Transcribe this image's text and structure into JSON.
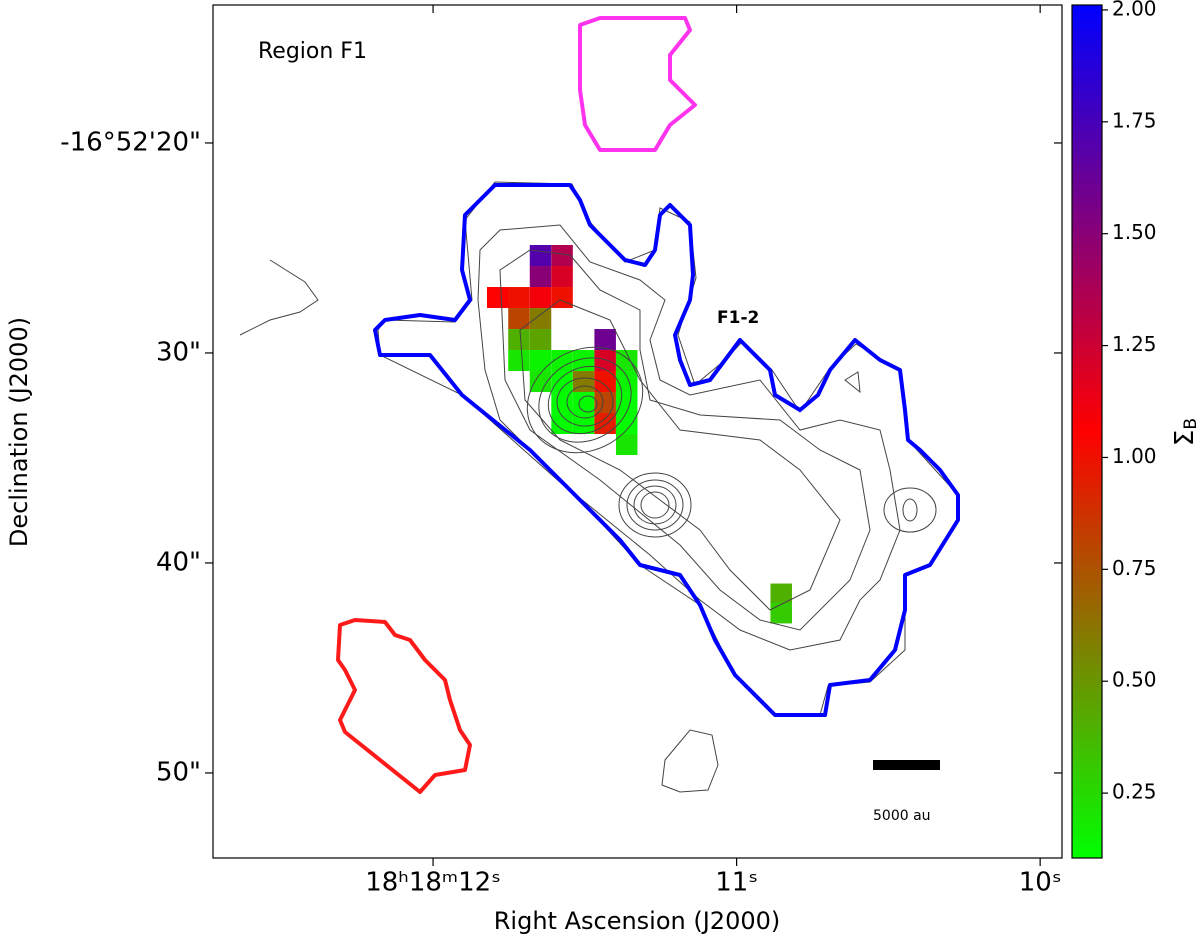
{
  "chart_data": {
    "type": "heatmap",
    "x_label": "Right Ascension (J2000)",
    "y_label": "Declination (J2000)",
    "annotations": {
      "region": "Region F1",
      "source": "F1-2",
      "scale_bar": "5000 au"
    },
    "xlim": [
      12.725,
      9.928
    ],
    "xticks": [
      {
        "value": 12,
        "label": "18ʰ18ᵐ12ˢ"
      },
      {
        "value": 11,
        "label": "11ˢ"
      },
      {
        "value": 10,
        "label": "10ˢ"
      }
    ],
    "ylim": [
      13.43,
      54.05
    ],
    "yticks": [
      {
        "value": 20,
        "label": "-16°52'20\""
      },
      {
        "value": 30,
        "label": "30\""
      },
      {
        "value": 40,
        "label": "40\""
      },
      {
        "value": 50,
        "label": "50\""
      }
    ],
    "x": [
      11.646,
      11.575,
      11.646,
      11.575,
      11.787,
      11.717,
      11.646,
      11.575,
      11.717,
      11.646,
      11.717,
      11.646,
      11.433,
      11.717,
      11.646,
      11.575,
      11.504,
      11.433,
      11.362,
      11.646,
      11.575,
      11.504,
      11.433,
      11.362,
      11.575,
      11.504,
      11.433,
      11.362,
      11.575,
      11.504,
      11.433,
      11.362,
      11.362,
      10.853,
      10.853
    ],
    "y": [
      25.36,
      25.36,
      26.36,
      26.36,
      27.36,
      27.36,
      27.36,
      27.36,
      28.36,
      28.36,
      29.36,
      29.36,
      29.36,
      30.36,
      30.36,
      30.36,
      30.36,
      30.36,
      30.36,
      31.36,
      31.36,
      31.36,
      31.36,
      31.36,
      32.36,
      32.36,
      32.36,
      32.36,
      33.36,
      33.36,
      33.36,
      33.36,
      34.36,
      41.48,
      42.38
    ],
    "values": [
      1.7,
      1.35,
      1.5,
      1.2,
      1.05,
      1.0,
      1.1,
      1.0,
      0.8,
      0.6,
      0.4,
      0.45,
      1.6,
      0.2,
      0.15,
      0.15,
      0.15,
      1.2,
      0.2,
      0.2,
      0.12,
      0.6,
      1.0,
      0.15,
      0.12,
      0.12,
      0.8,
      0.12,
      0.12,
      0.12,
      0.95,
      0.12,
      0.2,
      0.4,
      0.3
    ],
    "colormap": [
      "#00ff00",
      "#ff0000",
      "#0000ff"
    ],
    "colorbar_label": {
      "symbol": "Σ",
      "subscript": "B"
    },
    "clim": [
      0.105,
      2.011
    ],
    "cticks": [
      0.25,
      {
        "value": 0.5,
        "label": "0.50"
      },
      0.75,
      {
        "value": 1,
        "label": "1.00"
      },
      1.25,
      {
        "value": 1.5,
        "label": "1.50"
      },
      1.75,
      {
        "value": 2,
        "label": "2.00"
      }
    ]
  }
}
